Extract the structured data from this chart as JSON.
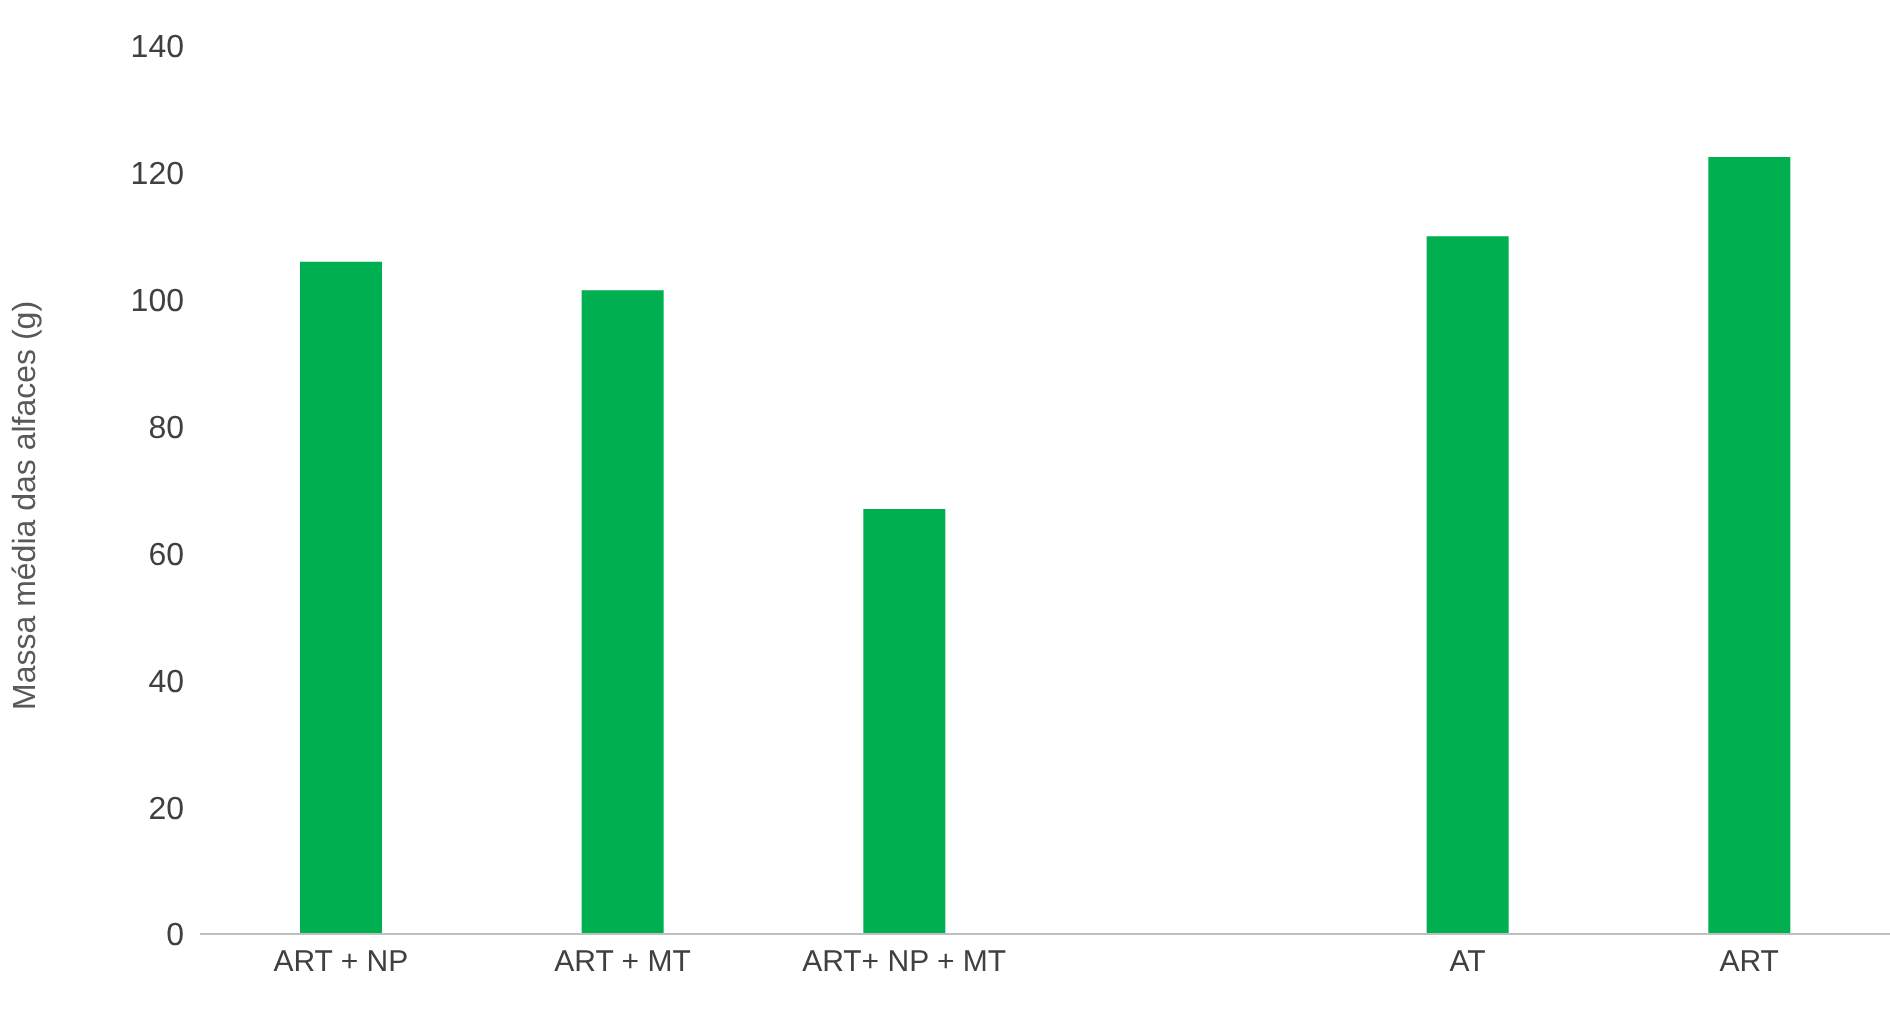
{
  "chart_data": {
    "type": "bar",
    "ylabel": "Massa média das alfaces (g)",
    "categories": [
      "ART + NP",
      "ART + MT",
      "ART+ NP + MT",
      null,
      "AT",
      "ART"
    ],
    "values": [
      106,
      101.5,
      67,
      null,
      110,
      122.5
    ],
    "color": "#00b050",
    "ylim": [
      0,
      140
    ],
    "yticks": [
      0,
      20,
      40,
      60,
      80,
      100,
      120,
      140
    ],
    "grid": false,
    "legend": false
  }
}
